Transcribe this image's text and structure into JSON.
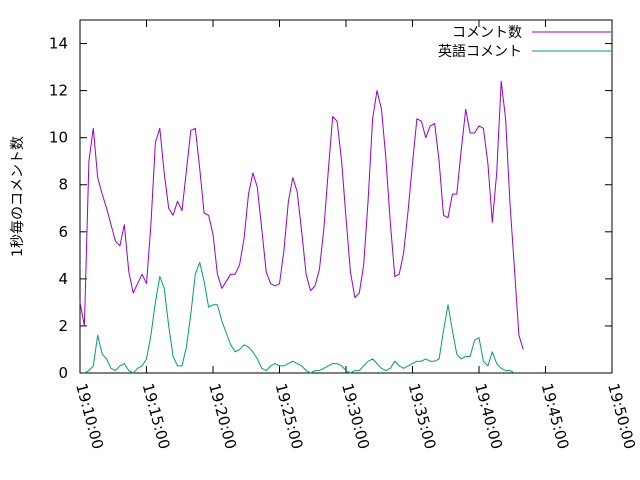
{
  "chart_data": {
    "type": "line",
    "title": "",
    "xlabel": "",
    "ylabel": "1秒毎のコメント数",
    "xlim": [
      "19:10:00",
      "19:50:00"
    ],
    "ylim": [
      0,
      15
    ],
    "xticks": [
      "19:10:00",
      "19:15:00",
      "19:20:00",
      "19:25:00",
      "19:30:00",
      "19:35:00",
      "19:40:00",
      "19:45:00",
      "19:50:00"
    ],
    "yticks": [
      0,
      2,
      4,
      6,
      8,
      10,
      12,
      14
    ],
    "legend": "top-right",
    "series": [
      {
        "name": "コメント数",
        "color": "#9400d3",
        "points": [
          [
            "19:10:00",
            3.0
          ],
          [
            "19:10:20",
            2.0
          ],
          [
            "19:10:40",
            9.0
          ],
          [
            "19:11:00",
            10.4
          ],
          [
            "19:11:20",
            8.3
          ],
          [
            "19:11:40",
            7.6
          ],
          [
            "19:12:00",
            7.0
          ],
          [
            "19:12:20",
            6.3
          ],
          [
            "19:12:40",
            5.6
          ],
          [
            "19:13:00",
            5.4
          ],
          [
            "19:13:20",
            6.3
          ],
          [
            "19:13:40",
            4.3
          ],
          [
            "19:14:00",
            3.4
          ],
          [
            "19:14:20",
            3.8
          ],
          [
            "19:14:40",
            4.2
          ],
          [
            "19:15:00",
            3.8
          ],
          [
            "19:15:20",
            6.3
          ],
          [
            "19:15:40",
            9.8
          ],
          [
            "19:16:00",
            10.4
          ],
          [
            "19:16:20",
            8.5
          ],
          [
            "19:16:40",
            7.0
          ],
          [
            "19:17:00",
            6.7
          ],
          [
            "19:17:20",
            7.3
          ],
          [
            "19:17:40",
            6.9
          ],
          [
            "19:18:00",
            8.6
          ],
          [
            "19:18:20",
            10.3
          ],
          [
            "19:18:40",
            10.4
          ],
          [
            "19:19:00",
            8.7
          ],
          [
            "19:19:20",
            6.8
          ],
          [
            "19:19:40",
            6.7
          ],
          [
            "19:20:00",
            5.9
          ],
          [
            "19:20:20",
            4.2
          ],
          [
            "19:20:40",
            3.6
          ],
          [
            "19:21:00",
            3.9
          ],
          [
            "19:21:20",
            4.2
          ],
          [
            "19:21:40",
            4.2
          ],
          [
            "19:22:00",
            4.6
          ],
          [
            "19:22:20",
            5.7
          ],
          [
            "19:22:40",
            7.6
          ],
          [
            "19:23:00",
            8.5
          ],
          [
            "19:23:20",
            7.9
          ],
          [
            "19:23:40",
            6.1
          ],
          [
            "19:24:00",
            4.3
          ],
          [
            "19:24:20",
            3.8
          ],
          [
            "19:24:40",
            3.7
          ],
          [
            "19:25:00",
            3.8
          ],
          [
            "19:25:20",
            5.2
          ],
          [
            "19:25:40",
            7.3
          ],
          [
            "19:26:00",
            8.3
          ],
          [
            "19:26:20",
            7.7
          ],
          [
            "19:26:40",
            6.0
          ],
          [
            "19:27:00",
            4.2
          ],
          [
            "19:27:20",
            3.5
          ],
          [
            "19:27:40",
            3.7
          ],
          [
            "19:28:00",
            4.4
          ],
          [
            "19:28:20",
            6.1
          ],
          [
            "19:28:40",
            8.6
          ],
          [
            "19:29:00",
            10.9
          ],
          [
            "19:29:20",
            10.7
          ],
          [
            "19:29:40",
            9.0
          ],
          [
            "19:30:00",
            6.6
          ],
          [
            "19:30:20",
            4.3
          ],
          [
            "19:30:40",
            3.2
          ],
          [
            "19:31:00",
            3.4
          ],
          [
            "19:31:20",
            4.6
          ],
          [
            "19:31:40",
            7.4
          ],
          [
            "19:32:00",
            10.8
          ],
          [
            "19:32:20",
            12.0
          ],
          [
            "19:32:40",
            11.2
          ],
          [
            "19:33:00",
            9.1
          ],
          [
            "19:33:20",
            6.4
          ],
          [
            "19:33:40",
            4.1
          ],
          [
            "19:34:00",
            4.2
          ],
          [
            "19:34:20",
            5.1
          ],
          [
            "19:34:40",
            6.9
          ],
          [
            "19:35:00",
            8.9
          ],
          [
            "19:35:20",
            10.8
          ],
          [
            "19:35:40",
            10.7
          ],
          [
            "19:36:00",
            10.0
          ],
          [
            "19:36:20",
            10.5
          ],
          [
            "19:36:40",
            10.6
          ],
          [
            "19:37:00",
            9.0
          ],
          [
            "19:37:20",
            6.7
          ],
          [
            "19:37:40",
            6.6
          ],
          [
            "19:38:00",
            7.6
          ],
          [
            "19:38:20",
            7.6
          ],
          [
            "19:38:40",
            9.5
          ],
          [
            "19:39:00",
            11.2
          ],
          [
            "19:39:20",
            10.2
          ],
          [
            "19:39:40",
            10.2
          ],
          [
            "19:40:00",
            10.5
          ],
          [
            "19:40:20",
            10.4
          ],
          [
            "19:40:40",
            8.9
          ],
          [
            "19:41:00",
            6.4
          ],
          [
            "19:41:20",
            8.5
          ],
          [
            "19:41:40",
            12.4
          ],
          [
            "19:42:00",
            10.8
          ],
          [
            "19:42:20",
            7.2
          ],
          [
            "19:42:40",
            4.4
          ],
          [
            "19:43:00",
            1.6
          ],
          [
            "19:43:20",
            1.0
          ]
        ]
      },
      {
        "name": "英語コメント",
        "color": "#009e73",
        "points": [
          [
            "19:10:20",
            0.0
          ],
          [
            "19:10:40",
            0.1
          ],
          [
            "19:11:00",
            0.3
          ],
          [
            "19:11:20",
            1.6
          ],
          [
            "19:11:40",
            0.8
          ],
          [
            "19:12:00",
            0.6
          ],
          [
            "19:12:20",
            0.2
          ],
          [
            "19:12:40",
            0.1
          ],
          [
            "19:13:00",
            0.3
          ],
          [
            "19:13:20",
            0.4
          ],
          [
            "19:13:40",
            0.1
          ],
          [
            "19:14:00",
            0.0
          ],
          [
            "19:14:20",
            0.2
          ],
          [
            "19:14:40",
            0.3
          ],
          [
            "19:15:00",
            0.6
          ],
          [
            "19:15:20",
            1.6
          ],
          [
            "19:15:40",
            3.0
          ],
          [
            "19:16:00",
            4.1
          ],
          [
            "19:16:20",
            3.6
          ],
          [
            "19:16:40",
            2.0
          ],
          [
            "19:17:00",
            0.7
          ],
          [
            "19:17:20",
            0.3
          ],
          [
            "19:17:40",
            0.3
          ],
          [
            "19:18:00",
            1.1
          ],
          [
            "19:18:20",
            2.5
          ],
          [
            "19:18:40",
            4.2
          ],
          [
            "19:19:00",
            4.7
          ],
          [
            "19:19:20",
            3.9
          ],
          [
            "19:19:40",
            2.8
          ],
          [
            "19:20:00",
            2.9
          ],
          [
            "19:20:20",
            2.9
          ],
          [
            "19:20:40",
            2.2
          ],
          [
            "19:21:00",
            1.7
          ],
          [
            "19:21:20",
            1.2
          ],
          [
            "19:21:40",
            0.9
          ],
          [
            "19:22:00",
            1.0
          ],
          [
            "19:22:20",
            1.2
          ],
          [
            "19:22:40",
            1.1
          ],
          [
            "19:23:00",
            0.9
          ],
          [
            "19:23:20",
            0.6
          ],
          [
            "19:23:40",
            0.2
          ],
          [
            "19:24:00",
            0.1
          ],
          [
            "19:24:20",
            0.3
          ],
          [
            "19:24:40",
            0.4
          ],
          [
            "19:25:00",
            0.3
          ],
          [
            "19:25:20",
            0.3
          ],
          [
            "19:25:40",
            0.4
          ],
          [
            "19:26:00",
            0.5
          ],
          [
            "19:26:20",
            0.4
          ],
          [
            "19:26:40",
            0.3
          ],
          [
            "19:27:00",
            0.1
          ],
          [
            "19:27:20",
            0.0
          ],
          [
            "19:27:40",
            0.1
          ],
          [
            "19:28:00",
            0.1
          ],
          [
            "19:28:20",
            0.2
          ],
          [
            "19:28:40",
            0.3
          ],
          [
            "19:29:00",
            0.4
          ],
          [
            "19:29:20",
            0.4
          ],
          [
            "19:29:40",
            0.3
          ],
          [
            "19:30:00",
            0.1
          ],
          [
            "19:30:20",
            0.0
          ],
          [
            "19:30:40",
            0.1
          ],
          [
            "19:31:00",
            0.1
          ],
          [
            "19:31:20",
            0.3
          ],
          [
            "19:31:40",
            0.5
          ],
          [
            "19:32:00",
            0.6
          ],
          [
            "19:32:20",
            0.4
          ],
          [
            "19:32:40",
            0.2
          ],
          [
            "19:33:00",
            0.1
          ],
          [
            "19:33:20",
            0.2
          ],
          [
            "19:33:40",
            0.5
          ],
          [
            "19:34:00",
            0.3
          ],
          [
            "19:34:20",
            0.2
          ],
          [
            "19:34:40",
            0.3
          ],
          [
            "19:35:00",
            0.4
          ],
          [
            "19:35:20",
            0.5
          ],
          [
            "19:35:40",
            0.5
          ],
          [
            "19:36:00",
            0.6
          ],
          [
            "19:36:20",
            0.5
          ],
          [
            "19:36:40",
            0.5
          ],
          [
            "19:37:00",
            0.6
          ],
          [
            "19:37:20",
            1.8
          ],
          [
            "19:37:40",
            2.9
          ],
          [
            "19:38:00",
            1.8
          ],
          [
            "19:38:20",
            0.8
          ],
          [
            "19:38:40",
            0.6
          ],
          [
            "19:39:00",
            0.7
          ],
          [
            "19:39:20",
            0.7
          ],
          [
            "19:39:40",
            1.4
          ],
          [
            "19:40:00",
            1.5
          ],
          [
            "19:40:20",
            0.5
          ],
          [
            "19:40:40",
            0.3
          ],
          [
            "19:41:00",
            0.9
          ],
          [
            "19:41:20",
            0.4
          ],
          [
            "19:41:40",
            0.2
          ],
          [
            "19:42:00",
            0.1
          ],
          [
            "19:42:20",
            0.1
          ],
          [
            "19:42:40",
            0.0
          ]
        ]
      }
    ]
  }
}
